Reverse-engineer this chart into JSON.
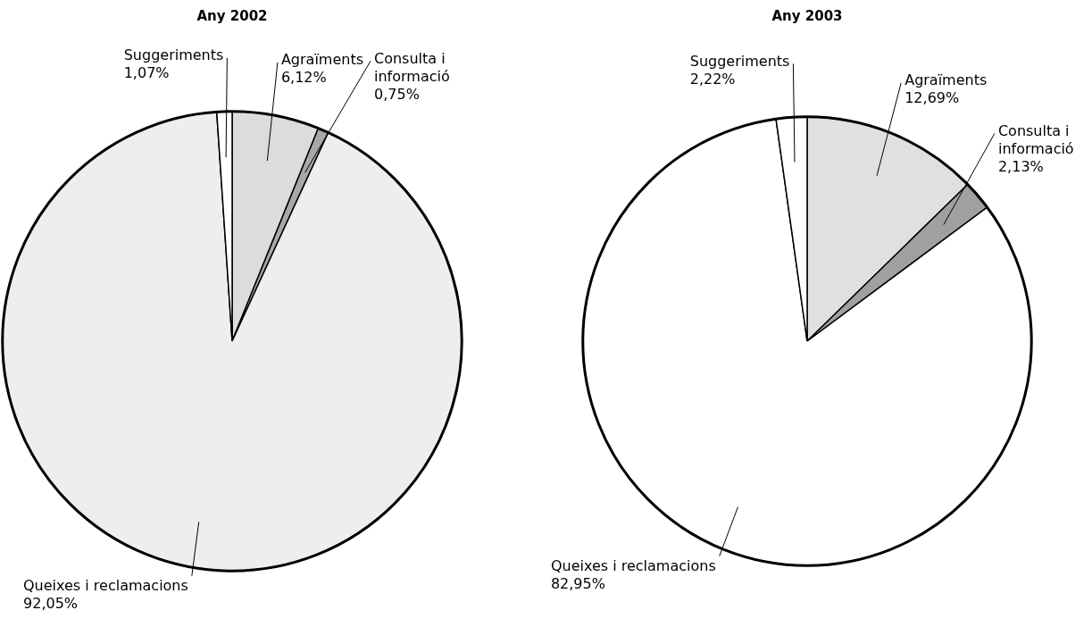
{
  "chart_data": [
    {
      "type": "pie",
      "title": "Any 2002",
      "categories": [
        "Agraïments",
        "Consulta i informació",
        "Queixes i reclamacions",
        "Suggeriments"
      ],
      "values": [
        6.12,
        0.75,
        92.05,
        1.07
      ],
      "value_labels": [
        "6,12%",
        "0,75%",
        "92,05%",
        "1,07%"
      ],
      "colors": [
        "#dcdcdc",
        "#a8a8a8",
        "#eeeeee",
        "#ffffff"
      ],
      "legend": false
    },
    {
      "type": "pie",
      "title": "Any 2003",
      "categories": [
        "Agraïments",
        "Consulta i informació",
        "Queixes i reclamacions",
        "Suggeriments"
      ],
      "values": [
        12.69,
        2.13,
        82.95,
        2.22
      ],
      "value_labels": [
        "12,69%",
        "2,13%",
        "82,95%",
        "2,22%"
      ],
      "colors": [
        "#e0e0e0",
        "#a0a0a0",
        "#ffffff",
        "#ffffff"
      ],
      "legend": false
    }
  ]
}
